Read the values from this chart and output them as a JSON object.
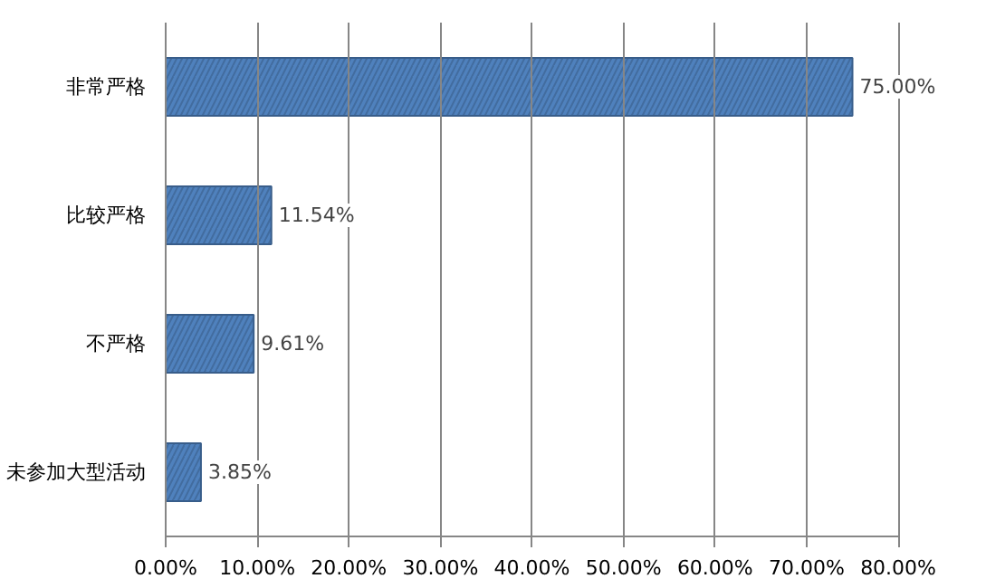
{
  "chart_data": {
    "type": "bar",
    "orientation": "horizontal",
    "categories": [
      "非常严格",
      "比较严格",
      "不严格",
      "未参加大型活动"
    ],
    "values": [
      75.0,
      11.54,
      9.61,
      3.85
    ],
    "value_labels": [
      "75.00%",
      "11.54%",
      "9.61%",
      "3.85%"
    ],
    "color": "#4f81bd",
    "xlim": [
      0,
      80
    ],
    "xticks": [
      {
        "value": 0,
        "label": "0.00%"
      },
      {
        "value": 10,
        "label": "10.00%"
      },
      {
        "value": 20,
        "label": "20.00%"
      },
      {
        "value": 30,
        "label": "30.00%"
      },
      {
        "value": 40,
        "label": "40.00%"
      },
      {
        "value": 50,
        "label": "50.00%"
      },
      {
        "value": 60,
        "label": "60.00%"
      },
      {
        "value": 70,
        "label": "70.00%"
      },
      {
        "value": 80,
        "label": "80.00%"
      }
    ],
    "grid": "x"
  }
}
